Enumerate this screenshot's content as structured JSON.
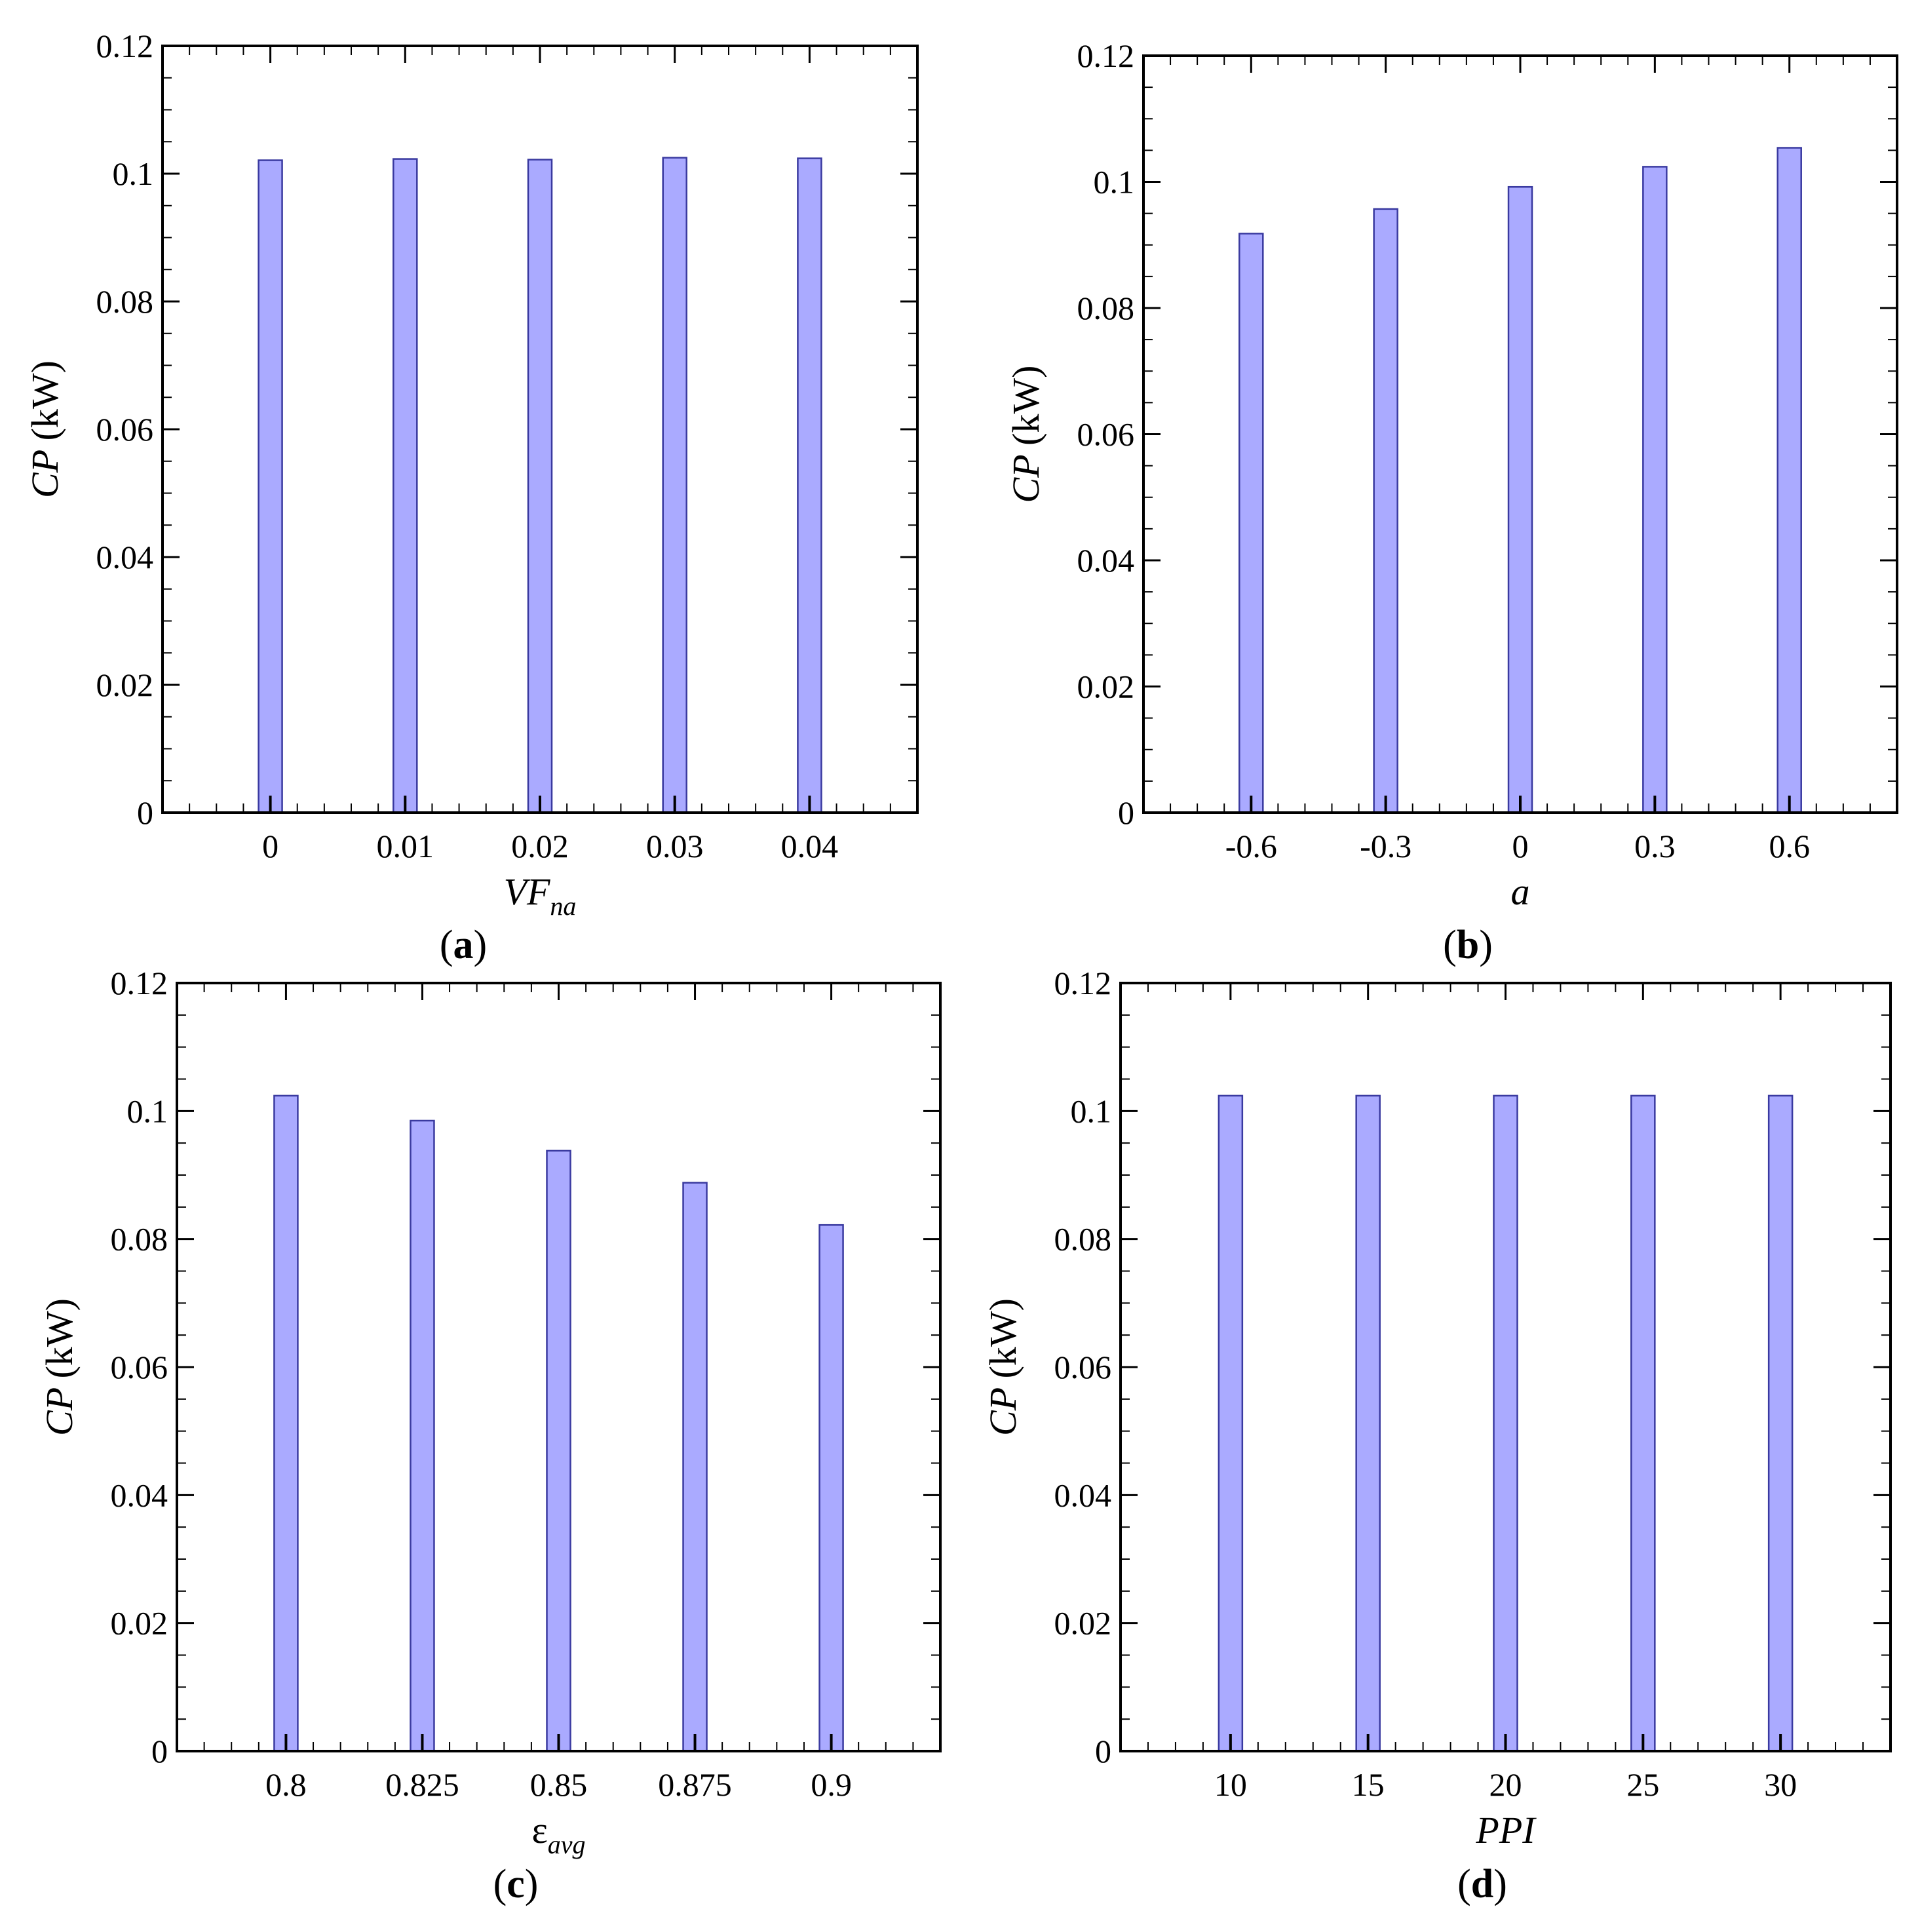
{
  "bar_fill": "#aaaaff",
  "bar_stroke": "#3a3aa0",
  "chart_data": [
    {
      "type": "bar",
      "panel_label": "(a)",
      "xlabel_main": "VF",
      "xlabel_sub": "na",
      "ylabel_main": "CP",
      "ylabel_unit": "(kW)",
      "categories": [
        "0",
        "0.01",
        "0.02",
        "0.03",
        "0.04"
      ],
      "values": [
        0.1021,
        0.1023,
        0.1022,
        0.1025,
        0.1024
      ],
      "ylim": [
        0,
        0.12
      ],
      "yticks": [
        "0",
        "0.02",
        "0.04",
        "0.06",
        "0.08",
        "0.1",
        "0.12"
      ]
    },
    {
      "type": "bar",
      "panel_label": "(b)",
      "xlabel_main": "a",
      "xlabel_sub": "",
      "ylabel_main": "CP",
      "ylabel_unit": "(kW)",
      "categories": [
        "-0.6",
        "-0.3",
        "0",
        "0.3",
        "0.6"
      ],
      "values": [
        0.0918,
        0.0957,
        0.0992,
        0.1024,
        0.1054
      ],
      "ylim": [
        0,
        0.12
      ],
      "yticks": [
        "0",
        "0.02",
        "0.04",
        "0.06",
        "0.08",
        "0.1",
        "0.12"
      ]
    },
    {
      "type": "bar",
      "panel_label": "(c)",
      "xlabel_main": "ε",
      "xlabel_sub": "avg",
      "ylabel_main": "CP",
      "ylabel_unit": "(kW)",
      "categories": [
        "0.8",
        "0.825",
        "0.85",
        "0.875",
        "0.9"
      ],
      "values": [
        0.1024,
        0.0985,
        0.0938,
        0.0888,
        0.0822
      ],
      "ylim": [
        0,
        0.12
      ],
      "yticks": [
        "0",
        "0.02",
        "0.04",
        "0.06",
        "0.08",
        "0.1",
        "0.12"
      ]
    },
    {
      "type": "bar",
      "panel_label": "(d)",
      "xlabel_main": "PPI",
      "xlabel_sub": "",
      "ylabel_main": "CP",
      "ylabel_unit": "(kW)",
      "categories": [
        "10",
        "15",
        "20",
        "25",
        "30"
      ],
      "values": [
        0.1024,
        0.1024,
        0.1024,
        0.1024,
        0.1024
      ],
      "ylim": [
        0,
        0.12
      ],
      "yticks": [
        "0",
        "0.02",
        "0.04",
        "0.06",
        "0.08",
        "0.1",
        "0.12"
      ]
    }
  ]
}
